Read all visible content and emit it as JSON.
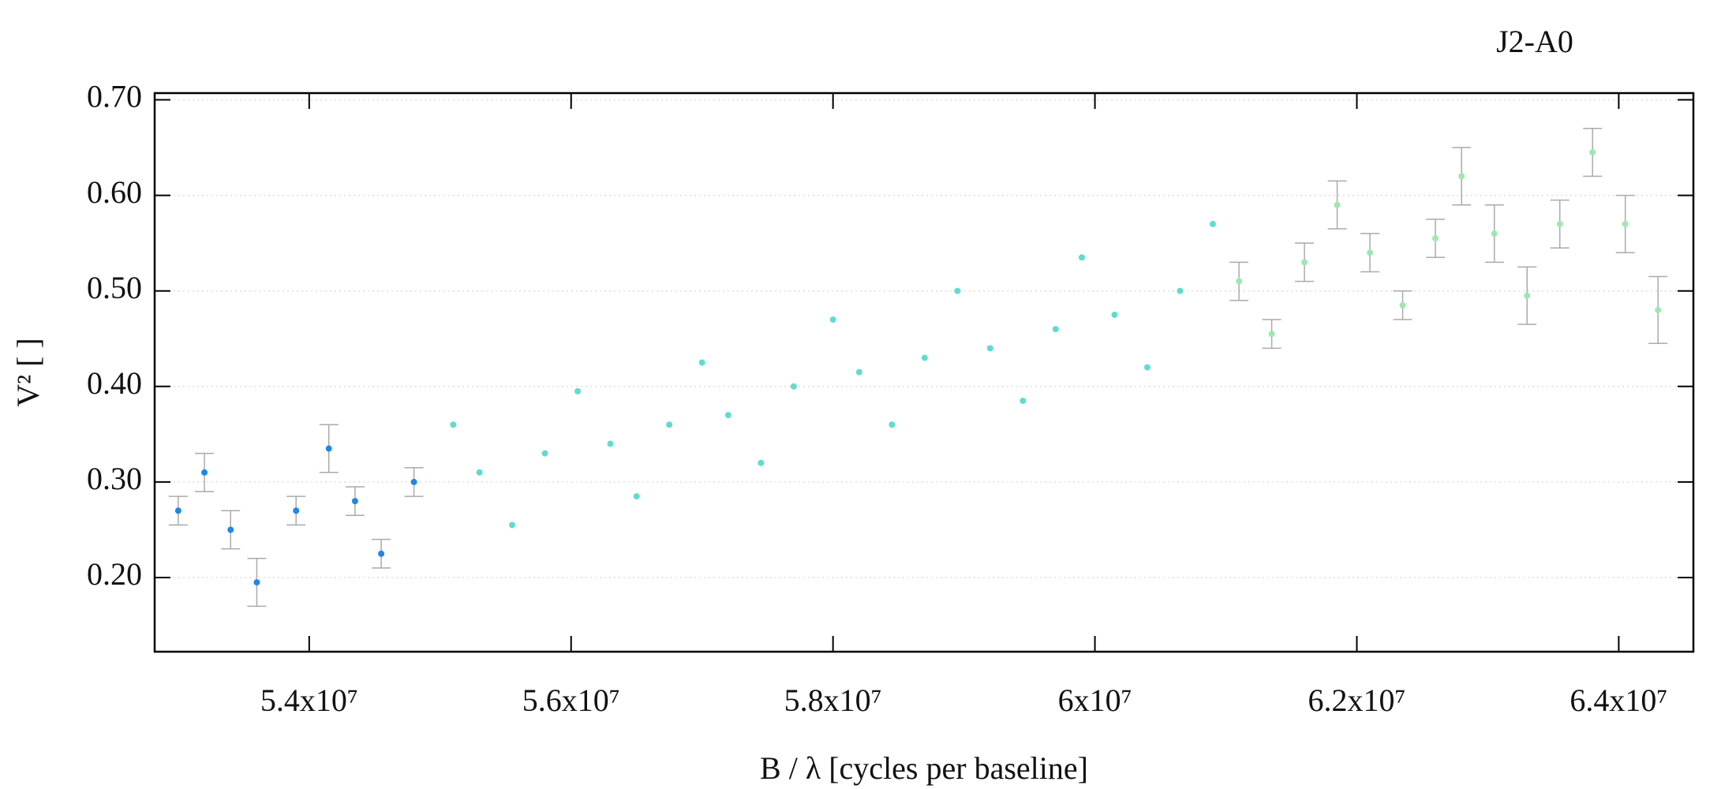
{
  "chart_data": {
    "type": "scatter",
    "title": "J2-A0",
    "xlabel": "B / λ [cycles per baseline]",
    "ylabel": "V² [ ]",
    "xlim": [
      52820000,
      64570000
    ],
    "ylim": [
      0.1224,
      0.707
    ],
    "xticks": [
      {
        "value": 54000000,
        "label": "5.4x10⁷"
      },
      {
        "value": 56000000,
        "label": "5.6x10⁷"
      },
      {
        "value": 58000000,
        "label": "5.8x10⁷"
      },
      {
        "value": 60000000,
        "label": "6x10⁷"
      },
      {
        "value": 62000000,
        "label": "6.2x10⁷"
      },
      {
        "value": 64000000,
        "label": "6.4x10⁷"
      }
    ],
    "yticks": [
      {
        "value": 0.2,
        "label": "0.20"
      },
      {
        "value": 0.3,
        "label": "0.30"
      },
      {
        "value": 0.4,
        "label": "0.40"
      },
      {
        "value": 0.5,
        "label": "0.50"
      },
      {
        "value": 0.6,
        "label": "0.60"
      },
      {
        "value": 0.7,
        "label": "0.70"
      }
    ],
    "grid": true,
    "error_color": "#aaaaaa",
    "series": [
      {
        "color": "#1e88e5",
        "x": [
          53000000,
          53200000,
          53400000,
          53600000,
          53900000,
          54150000,
          54350000,
          54550000,
          54800000
        ],
        "values": [
          0.27,
          0.31,
          0.25,
          0.195,
          0.27,
          0.335,
          0.28,
          0.225,
          0.3
        ],
        "errors": [
          0.015,
          0.02,
          0.02,
          0.025,
          0.015,
          0.025,
          0.015,
          0.015,
          0.015
        ]
      },
      {
        "color": "#5fdcd0",
        "x": [
          55100000,
          55300000,
          55550000,
          55800000,
          56050000,
          56300000,
          56500000,
          56750000,
          57000000,
          57200000,
          57450000,
          57700000,
          58000000,
          58200000,
          58450000,
          58700000,
          58950000,
          59200000,
          59450000,
          59700000,
          59900000,
          60150000,
          60400000,
          60650000,
          60900000
        ],
        "values": [
          0.36,
          0.31,
          0.255,
          0.33,
          0.395,
          0.34,
          0.285,
          0.36,
          0.425,
          0.37,
          0.32,
          0.4,
          0.47,
          0.415,
          0.36,
          0.43,
          0.5,
          0.44,
          0.385,
          0.46,
          0.535,
          0.475,
          0.42,
          0.5,
          0.57
        ]
      },
      {
        "color": "#9ee8b0",
        "x": [
          61100000,
          61350000,
          61600000,
          61850000,
          62100000,
          62350000,
          62600000,
          62800000,
          63050000,
          63300000,
          63550000,
          63800000,
          64050000,
          64300000
        ],
        "values": [
          0.51,
          0.455,
          0.53,
          0.59,
          0.54,
          0.485,
          0.555,
          0.62,
          0.56,
          0.495,
          0.57,
          0.645,
          0.57,
          0.48
        ],
        "errors": [
          0.02,
          0.015,
          0.02,
          0.025,
          0.02,
          0.015,
          0.02,
          0.03,
          0.03,
          0.03,
          0.025,
          0.025,
          0.03,
          0.035
        ]
      }
    ]
  }
}
